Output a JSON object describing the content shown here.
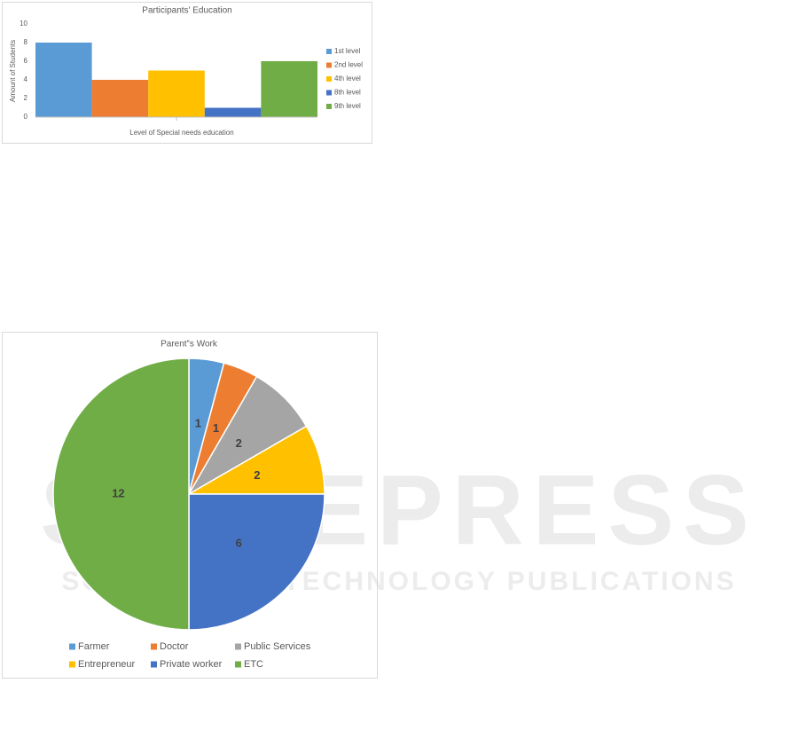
{
  "chart_data": [
    {
      "type": "bar",
      "title": "Participants' Education",
      "x_label": "Level of Special needs education",
      "y_label": "Amount of Students",
      "categories": [
        null
      ],
      "ylim": [
        0,
        10
      ],
      "yticks": [
        0,
        2,
        4,
        6,
        8,
        10
      ],
      "grid": false,
      "legend": "right",
      "series": [
        {
          "name": "1st level",
          "color": "#5b9bd5",
          "values": [
            8
          ]
        },
        {
          "name": "2nd level",
          "color": "#ed7d31",
          "values": [
            4
          ]
        },
        {
          "name": "4th level",
          "color": "#ffc000",
          "values": [
            5
          ]
        },
        {
          "name": "8th level",
          "color": "#4472c4",
          "values": [
            1
          ]
        },
        {
          "name": "9th level",
          "color": "#70ad47",
          "values": [
            6
          ]
        }
      ]
    },
    {
      "type": "pie",
      "title": "Parent‟s Work",
      "legend": "bottom",
      "categories": [
        "Farmer",
        "Doctor",
        "Public Services",
        "Entrepreneur",
        "Private worker",
        "ETC"
      ],
      "values": [
        1,
        1,
        2,
        2,
        6,
        12
      ],
      "colors": [
        "#5b9bd5",
        "#ed7d31",
        "#a5a5a5",
        "#ffc000",
        "#4472c4",
        "#70ad47"
      ]
    }
  ],
  "watermark": {
    "title": "SCITEPRESS",
    "subtitle": "SCIENCE AND TECHNOLOGY PUBLICATIONS"
  }
}
